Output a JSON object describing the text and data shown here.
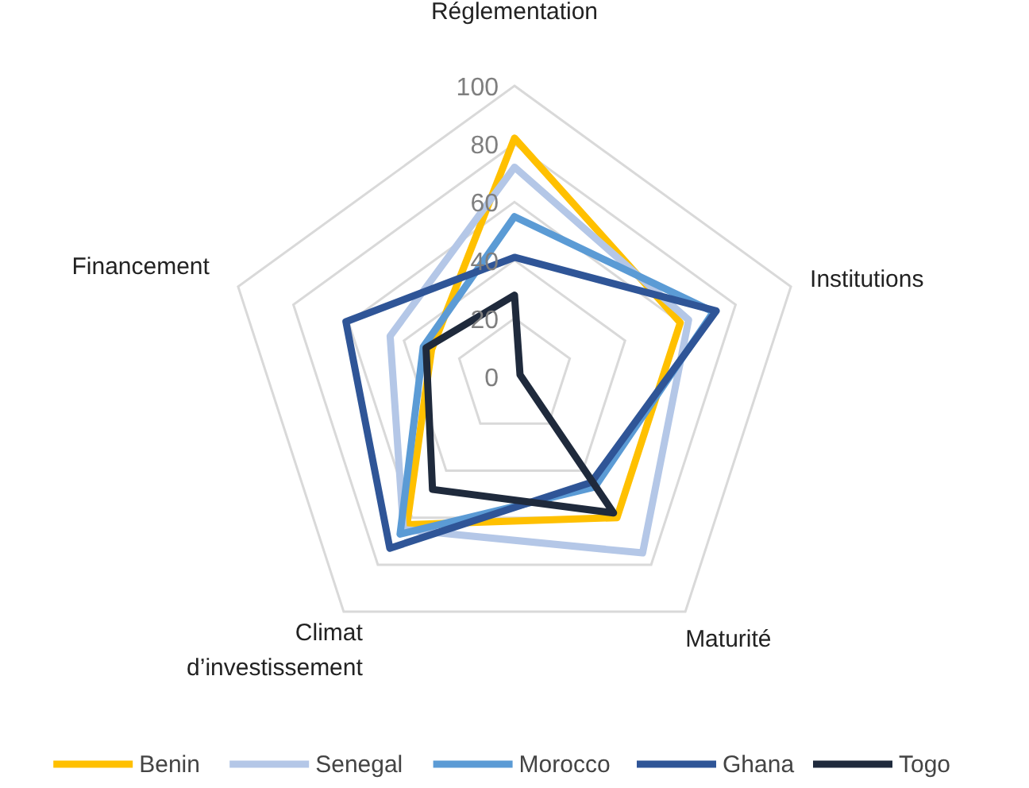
{
  "chart_data": {
    "type": "radar",
    "categories": [
      "Réglementation",
      "Institutions",
      "Maturité",
      "Climat d’investissement",
      "Financement"
    ],
    "series": [
      {
        "name": "Benin",
        "color": "#ffc000",
        "values": [
          82,
          60,
          60,
          63,
          30
        ]
      },
      {
        "name": "Senegal",
        "color": "#b4c7e7",
        "values": [
          72,
          63,
          75,
          65,
          45
        ]
      },
      {
        "name": "Morocco",
        "color": "#5b9bd5",
        "values": [
          55,
          72,
          47,
          67,
          33
        ]
      },
      {
        "name": "Ghana",
        "color": "#2f5597",
        "values": [
          41,
          73,
          45,
          73,
          61
        ]
      },
      {
        "name": "Togo",
        "color": "#1f2a3c",
        "values": [
          28,
          2,
          58,
          48,
          32
        ]
      }
    ],
    "ylim": [
      0,
      100
    ],
    "yticks": [
      0,
      20,
      40,
      60,
      80,
      100
    ],
    "grid": true,
    "legend": "bottom",
    "line_style": "solid"
  }
}
